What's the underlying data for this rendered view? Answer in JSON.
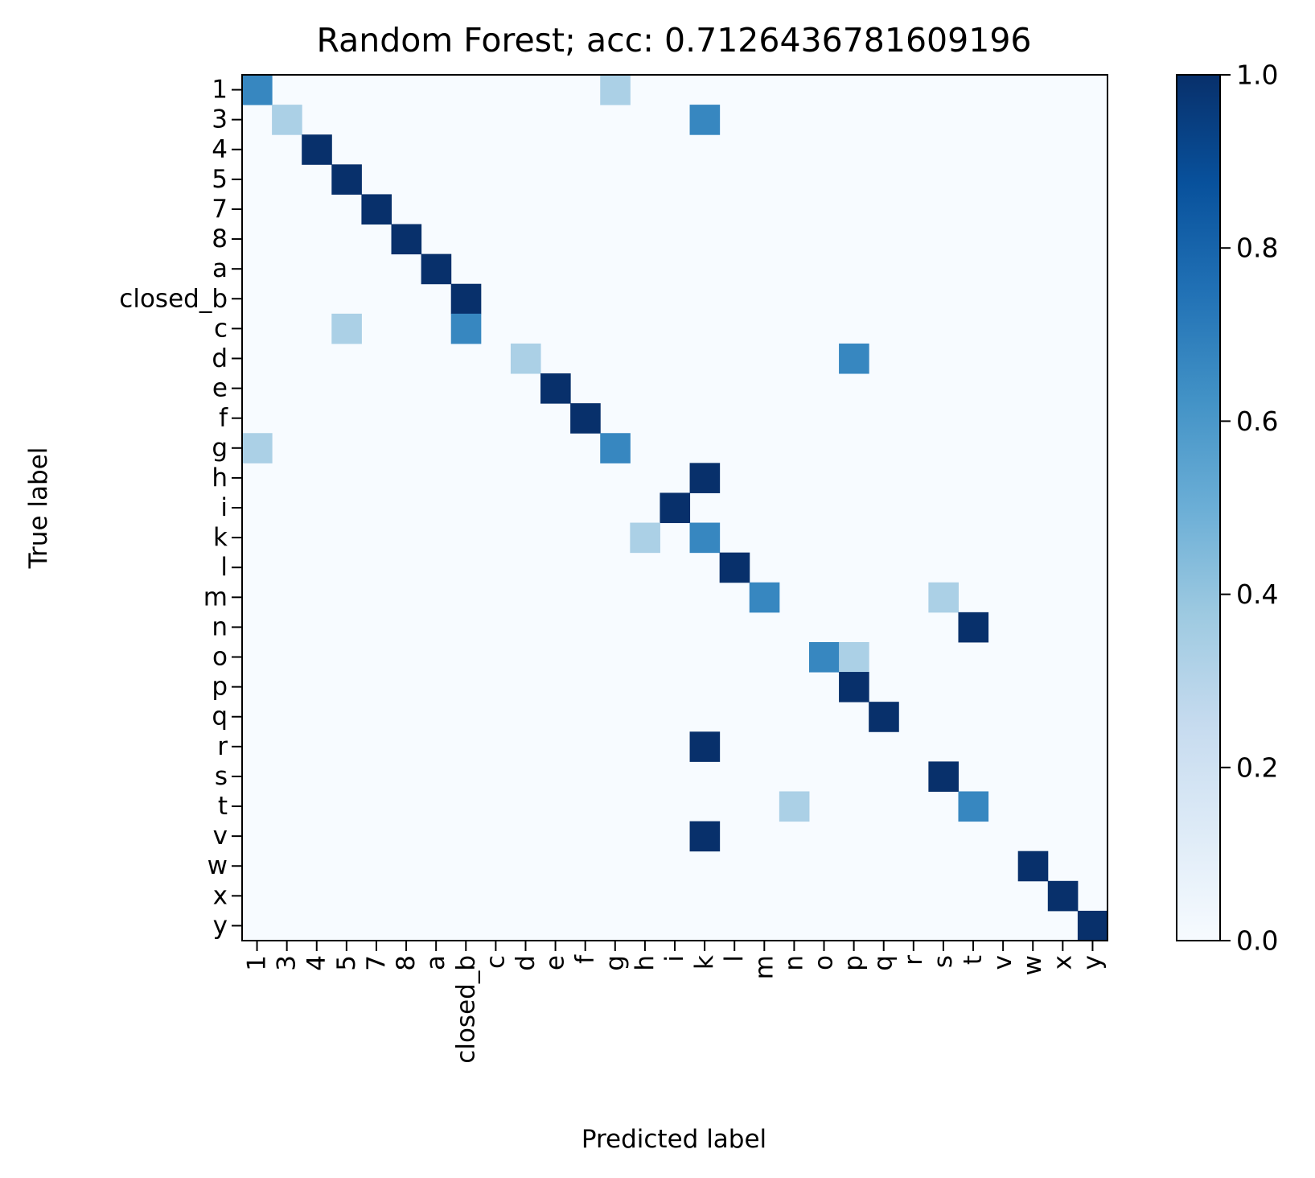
{
  "chart_data": {
    "type": "heatmap",
    "title": "Random Forest; acc: 0.7126436781609196",
    "xlabel": "Predicted label",
    "ylabel": "True label",
    "labels": [
      "1",
      "3",
      "4",
      "5",
      "7",
      "8",
      "a",
      "closed_b",
      "c",
      "d",
      "e",
      "f",
      "g",
      "h",
      "i",
      "k",
      "l",
      "m",
      "n",
      "o",
      "p",
      "q",
      "r",
      "s",
      "t",
      "v",
      "w",
      "x",
      "y"
    ],
    "colormap": "Blues",
    "colorbar": {
      "range": [
        0.0,
        1.0
      ],
      "ticks": [
        "0.0",
        "0.2",
        "0.4",
        "0.6",
        "0.8",
        "1.0"
      ]
    },
    "cells": [
      {
        "true": "1",
        "pred": "1",
        "value": 0.667
      },
      {
        "true": "1",
        "pred": "g",
        "value": 0.333
      },
      {
        "true": "3",
        "pred": "3",
        "value": 0.333
      },
      {
        "true": "3",
        "pred": "k",
        "value": 0.667
      },
      {
        "true": "4",
        "pred": "4",
        "value": 1.0
      },
      {
        "true": "5",
        "pred": "5",
        "value": 1.0
      },
      {
        "true": "7",
        "pred": "7",
        "value": 1.0
      },
      {
        "true": "8",
        "pred": "8",
        "value": 1.0
      },
      {
        "true": "a",
        "pred": "a",
        "value": 1.0
      },
      {
        "true": "closed_b",
        "pred": "closed_b",
        "value": 1.0
      },
      {
        "true": "c",
        "pred": "5",
        "value": 0.333
      },
      {
        "true": "c",
        "pred": "closed_b",
        "value": 0.667
      },
      {
        "true": "d",
        "pred": "d",
        "value": 0.333
      },
      {
        "true": "d",
        "pred": "p",
        "value": 0.667
      },
      {
        "true": "e",
        "pred": "e",
        "value": 1.0
      },
      {
        "true": "f",
        "pred": "f",
        "value": 1.0
      },
      {
        "true": "g",
        "pred": "1",
        "value": 0.333
      },
      {
        "true": "g",
        "pred": "g",
        "value": 0.667
      },
      {
        "true": "h",
        "pred": "k",
        "value": 1.0
      },
      {
        "true": "i",
        "pred": "i",
        "value": 1.0
      },
      {
        "true": "k",
        "pred": "h",
        "value": 0.333
      },
      {
        "true": "k",
        "pred": "k",
        "value": 0.667
      },
      {
        "true": "l",
        "pred": "l",
        "value": 1.0
      },
      {
        "true": "m",
        "pred": "m",
        "value": 0.667
      },
      {
        "true": "m",
        "pred": "s",
        "value": 0.333
      },
      {
        "true": "n",
        "pred": "t",
        "value": 1.0
      },
      {
        "true": "o",
        "pred": "o",
        "value": 0.667
      },
      {
        "true": "o",
        "pred": "p",
        "value": 0.333
      },
      {
        "true": "p",
        "pred": "p",
        "value": 1.0
      },
      {
        "true": "q",
        "pred": "q",
        "value": 1.0
      },
      {
        "true": "r",
        "pred": "k",
        "value": 1.0
      },
      {
        "true": "s",
        "pred": "s",
        "value": 1.0
      },
      {
        "true": "t",
        "pred": "n",
        "value": 0.333
      },
      {
        "true": "t",
        "pred": "t",
        "value": 0.667
      },
      {
        "true": "v",
        "pred": "k",
        "value": 1.0
      },
      {
        "true": "w",
        "pred": "w",
        "value": 1.0
      },
      {
        "true": "x",
        "pred": "x",
        "value": 1.0
      },
      {
        "true": "y",
        "pred": "y",
        "value": 1.0
      }
    ]
  }
}
